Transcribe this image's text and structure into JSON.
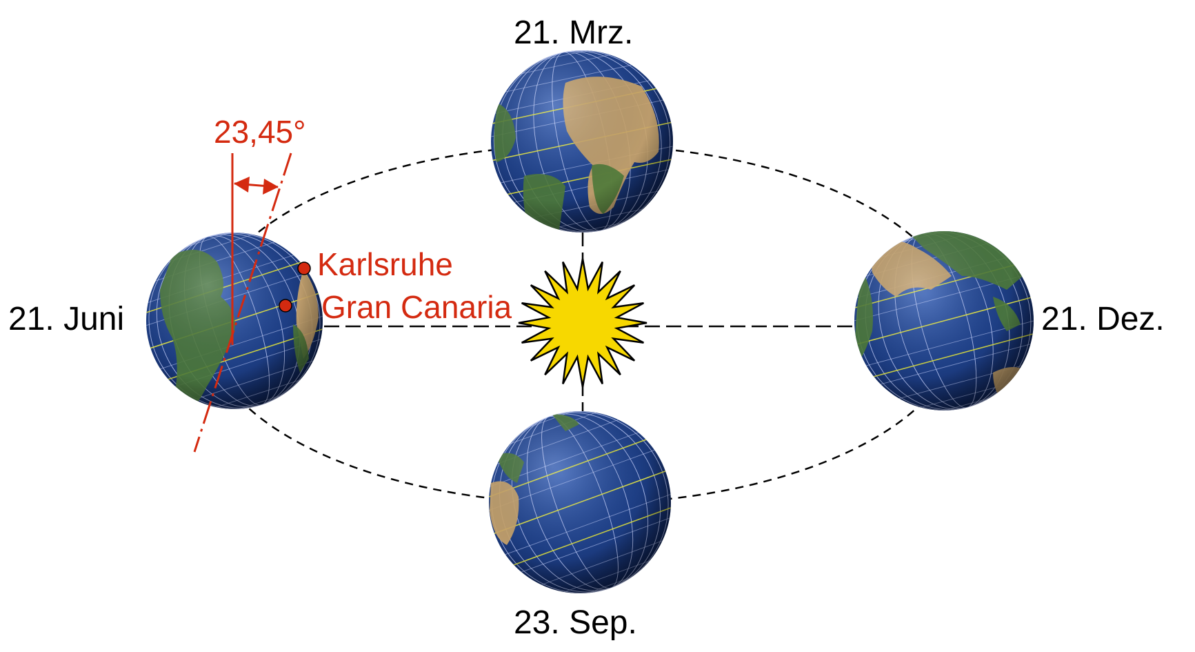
{
  "labels": {
    "march": "21. Mrz.",
    "june": "21. Juni",
    "september": "23. Sep.",
    "december": "21. Dez.",
    "tilt_angle": "23,45°",
    "karlsruhe": "Karlsruhe",
    "gran_canaria": "Gran Canaria"
  },
  "colors": {
    "annotation": "#d42a10",
    "sun_fill": "#f7d800",
    "sun_stroke": "#000000",
    "ocean": "#1e3f86",
    "land_green": "#4e7a3a",
    "land_desert": "#c9a46a",
    "grid_line": "#c8d4ff",
    "tropic_line": "#e8e83a"
  },
  "icons": {
    "sun": "sun-icon",
    "earth": "earth-globe-icon"
  }
}
